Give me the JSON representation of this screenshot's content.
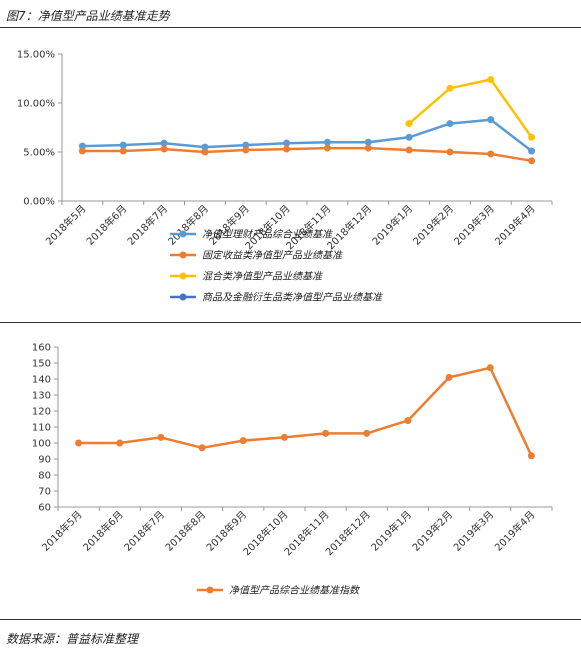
{
  "figure_title": "图7：净值型产品业绩基准走势",
  "source": "数据来源：普益标准整理",
  "chart_data": [
    {
      "type": "line",
      "categories": [
        "2018年5月",
        "2018年6月",
        "2018年7月",
        "2018年8月",
        "2018年9月",
        "2018年10月",
        "2018年11月",
        "2018年12月",
        "2019年1月",
        "2019年2月",
        "2019年3月",
        "2019年4月"
      ],
      "yticks": [
        "0.00%",
        "5.00%",
        "10.00%",
        "15.00%"
      ],
      "ylim": [
        0,
        15
      ],
      "series": [
        {
          "name": "净值型理财产品综合业绩基准",
          "color": "#5b9bd5",
          "values": [
            5.6,
            5.7,
            5.9,
            5.5,
            5.7,
            5.9,
            6.0,
            6.0,
            6.5,
            7.9,
            8.3,
            5.1
          ]
        },
        {
          "name": "固定收益类净值型产品业绩基准",
          "color": "#ed7d31",
          "values": [
            5.1,
            5.1,
            5.3,
            5.0,
            5.2,
            5.3,
            5.4,
            5.4,
            5.2,
            5.0,
            4.8,
            4.1
          ]
        },
        {
          "name": "混合类净值型产品业绩基准",
          "color": "#ffc000",
          "values": [
            null,
            null,
            null,
            null,
            null,
            null,
            null,
            null,
            7.9,
            11.5,
            12.4,
            6.5
          ]
        },
        {
          "name": "商品及金融衍生品类净值型产品业绩基准",
          "color": "#4472c4",
          "values": [
            null,
            null,
            null,
            null,
            null,
            null,
            null,
            null,
            null,
            null,
            null,
            null
          ]
        }
      ],
      "legend_position": "bottom"
    },
    {
      "type": "line",
      "categories": [
        "2018年5月",
        "2018年6月",
        "2018年7月",
        "2018年8月",
        "2018年9月",
        "2018年10月",
        "2018年11月",
        "2018年12月",
        "2019年1月",
        "2019年2月",
        "2019年3月",
        "2019年4月"
      ],
      "yticks": [
        "60",
        "70",
        "80",
        "90",
        "100",
        "110",
        "120",
        "130",
        "140",
        "150",
        "160"
      ],
      "ylim": [
        60,
        160
      ],
      "series": [
        {
          "name": "净值型产品综合业绩基准指数",
          "color": "#ed7d31",
          "values": [
            100,
            100,
            103.5,
            97,
            101.5,
            103.5,
            106,
            106,
            114,
            141,
            147,
            92
          ]
        }
      ],
      "legend_position": "bottom"
    }
  ]
}
